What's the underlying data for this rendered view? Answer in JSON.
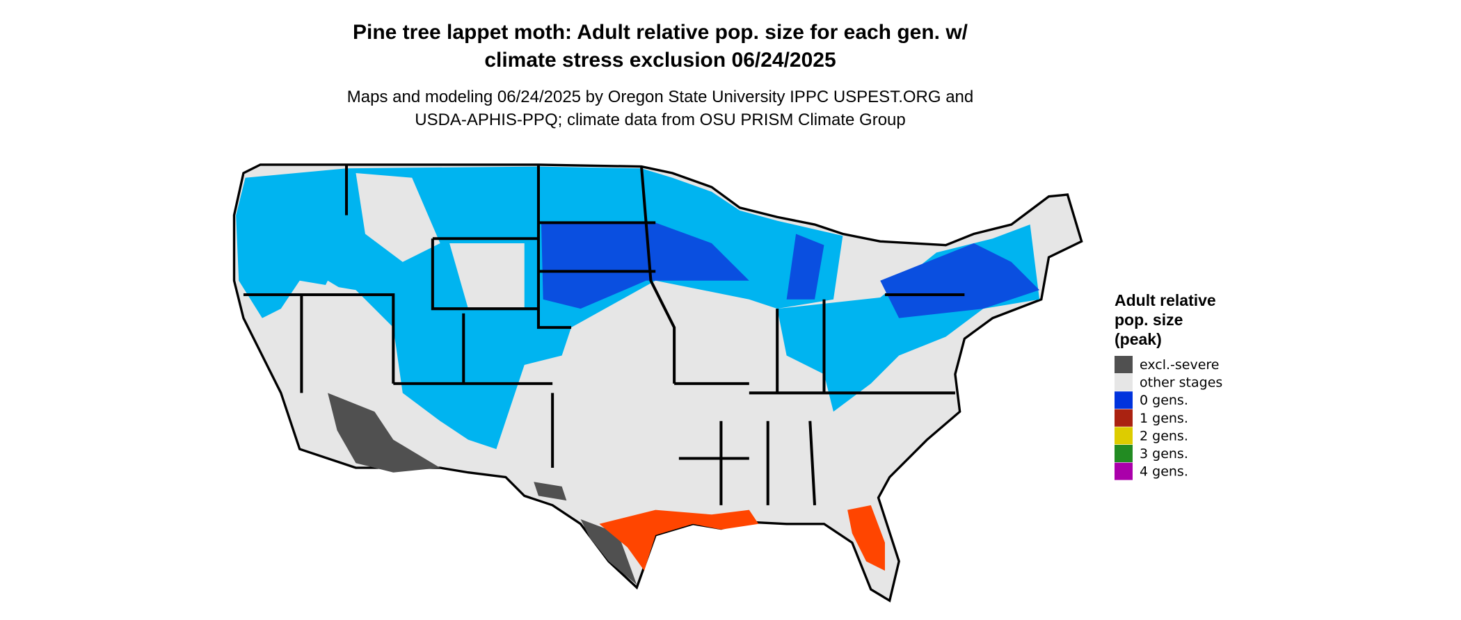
{
  "header": {
    "title_lines": [
      "Pine tree lappet moth: Adult relative pop. size for each gen. w/",
      "climate stress exclusion 06/24/2025"
    ],
    "subtitle_lines": [
      "Maps and modeling 06/24/2025 by Oregon State University IPPC USPEST.ORG and",
      "USDA-APHIS-PPQ; climate data from OSU PRISM Climate Group"
    ]
  },
  "legend": {
    "title_lines": [
      "Adult relative",
      "pop. size",
      "(peak)"
    ],
    "items": [
      {
        "label": "excl.-severe",
        "color": "#505050"
      },
      {
        "label": "other stages",
        "color": "#e6e6e6"
      },
      {
        "label": "0 gens.",
        "color": "#0033dd"
      },
      {
        "label": "1 gens.",
        "color": "#aa2211"
      },
      {
        "label": "2 gens.",
        "color": "#ddcc00"
      },
      {
        "label": "3 gens.",
        "color": "#228b22"
      },
      {
        "label": "4 gens.",
        "color": "#aa00aa"
      }
    ]
  }
}
